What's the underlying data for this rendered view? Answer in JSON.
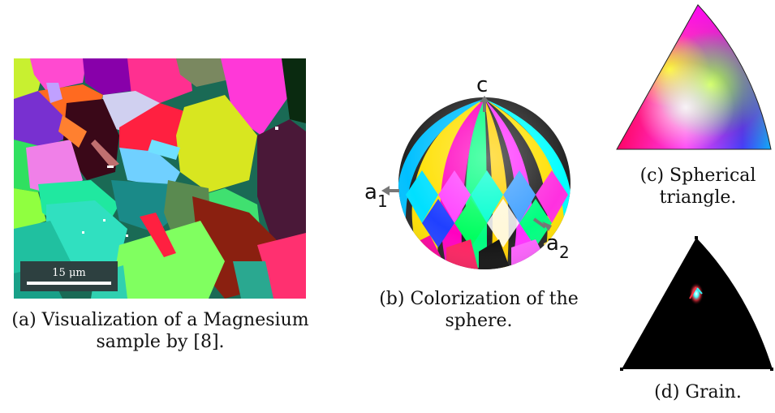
{
  "figures": {
    "a": {
      "caption_line1": "(a) Visualization of a Magnesium",
      "caption_line2": "sample by [8].",
      "scale_bar_label": "15 μm"
    },
    "b": {
      "caption_line1": "(b) Colorization of the",
      "caption_line2": "sphere.",
      "axis_c": "c",
      "axis_a": "a",
      "axis_a1_sub": "1",
      "axis_a2_sub": "2"
    },
    "c": {
      "caption_line1": "(c) Spherical",
      "caption_line2": "triangle."
    },
    "d": {
      "caption": "(d) Grain."
    }
  },
  "colors": {
    "background": "#ffffff",
    "arrow": "#777777",
    "scale_box": "#2d4040"
  }
}
